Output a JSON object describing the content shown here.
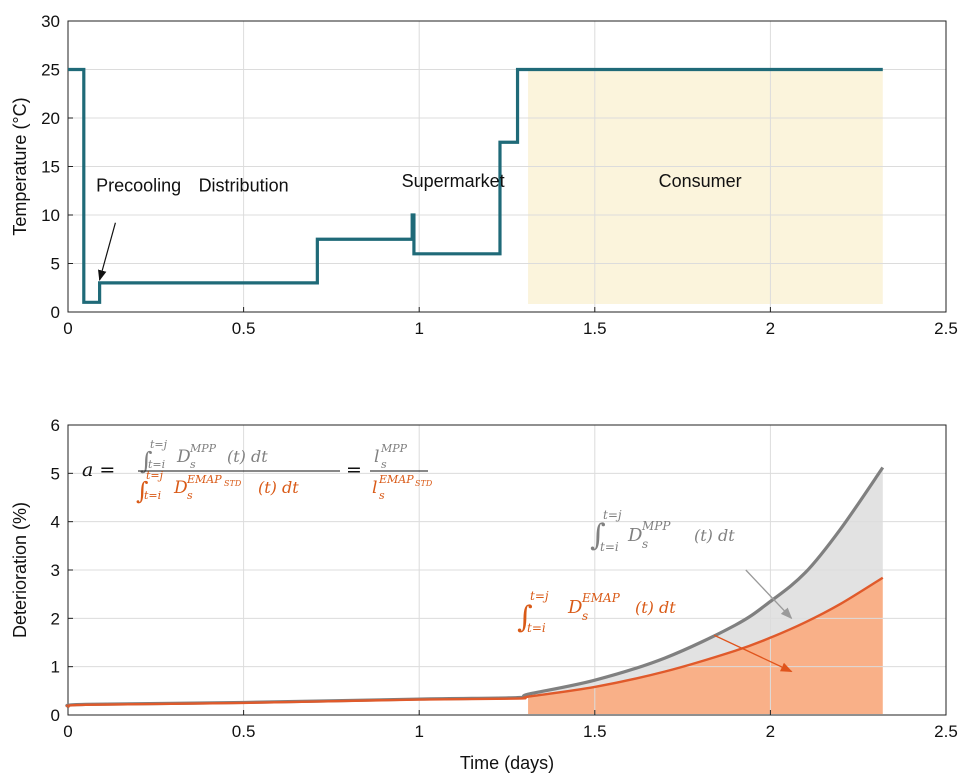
{
  "chart_data": [
    {
      "type": "line",
      "title": "",
      "xlabel": "",
      "ylabel": "Temperature (°C)",
      "xlim": [
        0,
        2.5
      ],
      "ylim": [
        0,
        30
      ],
      "xticks": [
        0,
        0.5,
        1,
        1.5,
        2,
        2.5
      ],
      "xtick_labels": [
        "0",
        "0.5",
        "1",
        "1.5",
        "2",
        "2.5"
      ],
      "yticks": [
        0,
        5,
        10,
        15,
        20,
        25,
        30
      ],
      "ytick_labels": [
        "0",
        "5",
        "10",
        "15",
        "20",
        "25",
        "30"
      ],
      "grid": true,
      "line_color": "#1f6a78",
      "shaded_region": {
        "label": "Consumer",
        "x": [
          1.31,
          2.32
        ],
        "y": [
          0,
          25
        ],
        "color": "#fbf4dc"
      },
      "series": [
        {
          "x": [
            0,
            0.045,
            0.045,
            0.09,
            0.09,
            0.71,
            0.71,
            0.98,
            0.98,
            0.985,
            0.985,
            1.23,
            1.23,
            1.28,
            1.28,
            2.32
          ],
          "y": [
            25,
            25,
            1,
            1,
            3,
            3,
            7.5,
            7.5,
            10,
            10,
            6,
            6,
            17.5,
            17.5,
            25,
            25
          ]
        }
      ],
      "annotations": [
        {
          "text": "Precooling",
          "x": 0.08,
          "y": 12.4,
          "arrow_from": [
            0.135,
            9.2
          ],
          "arrow_to": [
            0.09,
            3.3
          ]
        },
        {
          "text": "Distribution",
          "x": 0.5,
          "y": 12.4
        },
        {
          "text": "Supermarket",
          "x": 0.95,
          "y": 12.9
        },
        {
          "text": "Consumer",
          "x": 1.8,
          "y": 12.9
        }
      ]
    },
    {
      "type": "area",
      "title": "",
      "xlabel": "Time (days)",
      "ylabel": "Deterioration (%)",
      "xlim": [
        0,
        2.5
      ],
      "ylim": [
        0,
        6
      ],
      "xticks": [
        0,
        0.5,
        1,
        1.5,
        2,
        2.5
      ],
      "xtick_labels": [
        "0",
        "0.5",
        "1",
        "1.5",
        "2",
        "2.5"
      ],
      "yticks": [
        0,
        1,
        2,
        3,
        4,
        5,
        6
      ],
      "ytick_labels": [
        "0",
        "1",
        "2",
        "3",
        "4",
        "5",
        "6"
      ],
      "grid": true,
      "series": [
        {
          "label": "MPP",
          "line_color": "#808080",
          "fill_color": "#e2e2e2",
          "x": [
            0,
            0.05,
            0.5,
            1.0,
            1.28,
            1.31,
            1.5,
            1.7,
            1.9,
            2.0,
            2.1,
            2.2,
            2.32
          ],
          "y": [
            0.18,
            0.22,
            0.26,
            0.33,
            0.36,
            0.43,
            0.72,
            1.18,
            1.86,
            2.35,
            2.95,
            3.85,
            5.12
          ]
        },
        {
          "label": "EMAP",
          "line_color": "#e05a2b",
          "fill_color": "#f9b088",
          "x": [
            0,
            0.05,
            0.5,
            1.0,
            1.28,
            1.31,
            1.5,
            1.7,
            1.9,
            2.0,
            2.1,
            2.2,
            2.32
          ],
          "y": [
            0.17,
            0.21,
            0.25,
            0.32,
            0.34,
            0.38,
            0.58,
            0.9,
            1.33,
            1.6,
            1.92,
            2.3,
            2.84
          ]
        }
      ],
      "fill_from_x": 1.31,
      "annotations": [
        {
          "id": "formula",
          "lhs": "a =",
          "num": {
            "int_sym": "∫",
            "upper": "t=j",
            "lower": "t=i",
            "body": "D",
            "sub": "s",
            "sup": "MPP",
            "tail": "(t)  dt"
          },
          "den": {
            "int_sym": "∫",
            "upper": "t=j",
            "lower": "t=i",
            "body": "D",
            "sub": "s",
            "sup": "EMAP",
            "sup_sub": "STD",
            "tail": "(t) dt"
          },
          "eq2": "=",
          "num2": {
            "body": "l",
            "sub": "s",
            "sup": "MPP"
          },
          "den2": {
            "body": "l",
            "sub": "s",
            "sup": "EMAP",
            "sup_sub": "STD"
          }
        },
        {
          "id": "mpp-integral",
          "int_sym": "∫",
          "upper": "t=j",
          "lower": "t=i",
          "body": "D",
          "sub": "s",
          "sup": "MPP",
          "tail": "(t) dt",
          "arrow_from": [
            1.93,
            3.0
          ],
          "arrow_to": [
            2.06,
            2.0
          ]
        },
        {
          "id": "emap-integral",
          "int_sym": "∫",
          "upper": "t=j",
          "lower": "t=i",
          "body": "D",
          "sub": "s",
          "sup": "EMAP",
          "tail": "(t)  dt",
          "arrow_from": [
            1.84,
            1.65
          ],
          "arrow_to": [
            2.06,
            0.9
          ]
        }
      ]
    }
  ]
}
